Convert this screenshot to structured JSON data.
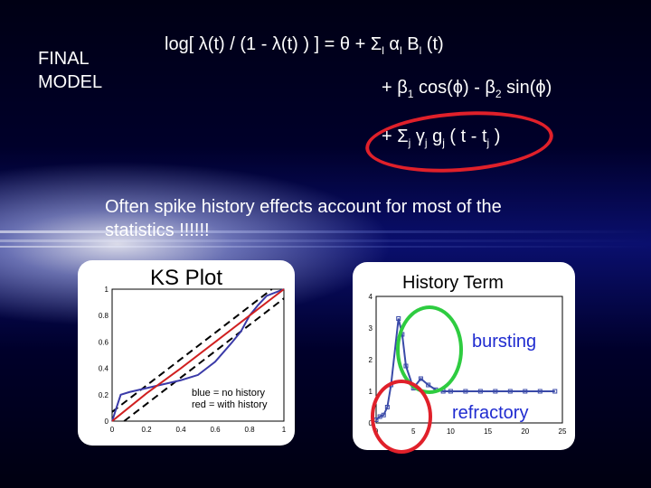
{
  "slide": {
    "side_label_line1": "FINAL",
    "side_label_line2": "MODEL",
    "equation": {
      "line1_prefix": "log[ λ(t) / (1 - λ(t) ) ] = θ + Σ",
      "line1_sub_i": "l",
      "line1_alpha": " α",
      "line1_B": " B",
      "line1_suffix": " (t)",
      "line2_a": "+ β",
      "line2_sub1": "1",
      "line2_b": " cos(ϕ) - β",
      "line2_sub2": "2",
      "line2_c": " sin(ϕ)",
      "line3_a": "+ Σ",
      "line3_sub_j": "j",
      "line3_gamma": " γ",
      "line3_g": " g",
      "line3_b": " ( t - t",
      "line3_c": " )"
    },
    "note": "Often spike history effects account for most of the statistics !!!!!!",
    "highlight_color": "#e0202a",
    "bursting_color": "#2ecc40",
    "label_color": "#1f2bd0"
  },
  "chart_data": [
    {
      "type": "line",
      "title": "KS Plot",
      "xlim": [
        0,
        1
      ],
      "ylim": [
        0,
        1
      ],
      "xticks": [
        "0",
        "0.2",
        "0.4",
        "0.6",
        "0.8",
        "1"
      ],
      "yticks": [
        "0",
        "0.2",
        "0.4",
        "0.6",
        "0.8",
        "1"
      ],
      "annotation_line1": "blue = no history",
      "annotation_line2": "red = with history",
      "series": [
        {
          "name": "no history",
          "color": "#3a3aa8",
          "x": [
            0,
            0.05,
            0.1,
            0.2,
            0.3,
            0.4,
            0.5,
            0.6,
            0.7,
            0.75,
            0.8,
            0.85,
            0.9,
            1.0
          ],
          "y": [
            0,
            0.2,
            0.22,
            0.25,
            0.28,
            0.31,
            0.35,
            0.45,
            0.6,
            0.68,
            0.8,
            0.88,
            0.95,
            1.0
          ]
        },
        {
          "name": "with history",
          "color": "#d02020",
          "x": [
            0,
            0.2,
            0.4,
            0.6,
            0.8,
            1.0
          ],
          "y": [
            0,
            0.21,
            0.4,
            0.6,
            0.8,
            1.0
          ]
        }
      ],
      "confidence_bands": {
        "offset": 0.07
      }
    },
    {
      "type": "line",
      "title": "History Term",
      "xlim": [
        0,
        25
      ],
      "ylim": [
        0,
        4
      ],
      "xticks": [
        "0",
        "5",
        "10",
        "15",
        "20",
        "25"
      ],
      "yticks": [
        "0",
        "1",
        "2",
        "3",
        "4"
      ],
      "labels": {
        "burst": "bursting",
        "refract": "refractory"
      },
      "series": [
        {
          "name": "history",
          "color": "#3a4aa8",
          "x": [
            0,
            0.5,
            1,
            1.5,
            2,
            3,
            3.5,
            4,
            5,
            6,
            7,
            8,
            9,
            10,
            12,
            14,
            16,
            18,
            20,
            22,
            24
          ],
          "y": [
            0.1,
            0.2,
            0.25,
            0.5,
            1.2,
            3.3,
            2.8,
            1.8,
            1.1,
            1.4,
            1.2,
            1.05,
            1.0,
            1.0,
            1.0,
            1.0,
            1.0,
            1.0,
            1.0,
            1.0,
            1.0
          ]
        }
      ]
    }
  ]
}
